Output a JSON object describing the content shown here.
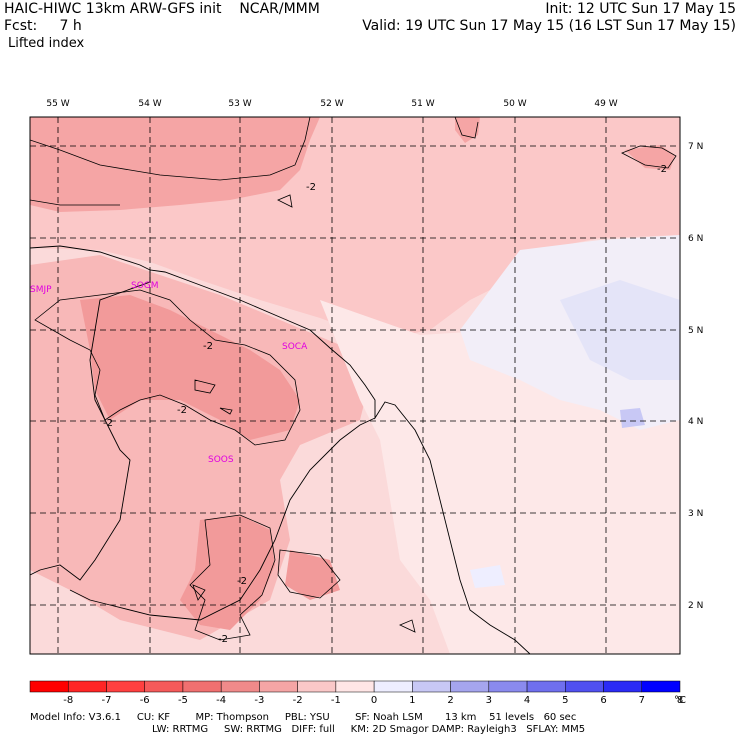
{
  "header": {
    "model": "HAIC-HIWC 13km ARW-GFS init",
    "org": "NCAR/MMM",
    "init": "Init: 12 UTC Sun 17 May 15",
    "fcst": "Fcst:     7 h",
    "valid": "Valid: 19 UTC Sun 17 May 15 (16 LST Sun 17 May 15)",
    "field": "Lifted index"
  },
  "map": {
    "lon_labels": [
      "55 W",
      "54 W",
      "53 W",
      "52 W",
      "51 W",
      "50 W",
      "49 W"
    ],
    "lat_labels": [
      "7 N",
      "6 N",
      "5 N",
      "4 N",
      "3 N",
      "2 N"
    ],
    "stations": [
      {
        "name": "SMJP"
      },
      {
        "name": "SOGM"
      },
      {
        "name": "SOCA"
      },
      {
        "name": "SOOS"
      }
    ],
    "contour_labels": [
      "-2",
      "-2",
      "-2",
      "-2",
      "-2",
      "-2",
      "-2"
    ]
  },
  "colorbar": {
    "ticks": [
      "-8",
      "-7",
      "-6",
      "-5",
      "-4",
      "-3",
      "-2",
      "-1",
      "0",
      "1",
      "2",
      "3",
      "4",
      "5",
      "6",
      "7",
      "8"
    ],
    "unit": "°C",
    "colors": [
      "#ff0000",
      "#ff2525",
      "#ff4040",
      "#f55a5a",
      "#f07070",
      "#f08a8a",
      "#f5a5a5",
      "#fac8c8",
      "#ffe6e6",
      "#eeeeff",
      "#c8c8f5",
      "#a5a5ee",
      "#8a8aee",
      "#6f6fee",
      "#5050f0",
      "#2b2bf5",
      "#0000ff"
    ]
  },
  "footer": {
    "line1": "Model Info: V3.6.1     CU: KF        MP: Thompson     PBL: YSU        SF: Noah LSM       13 km    51 levels   60 sec",
    "line2": "LW: RRTMG     SW: RRTMG   DIFF: full     KM: 2D Smagor DAMP: Rayleigh3   SFLAY: MM5"
  }
}
